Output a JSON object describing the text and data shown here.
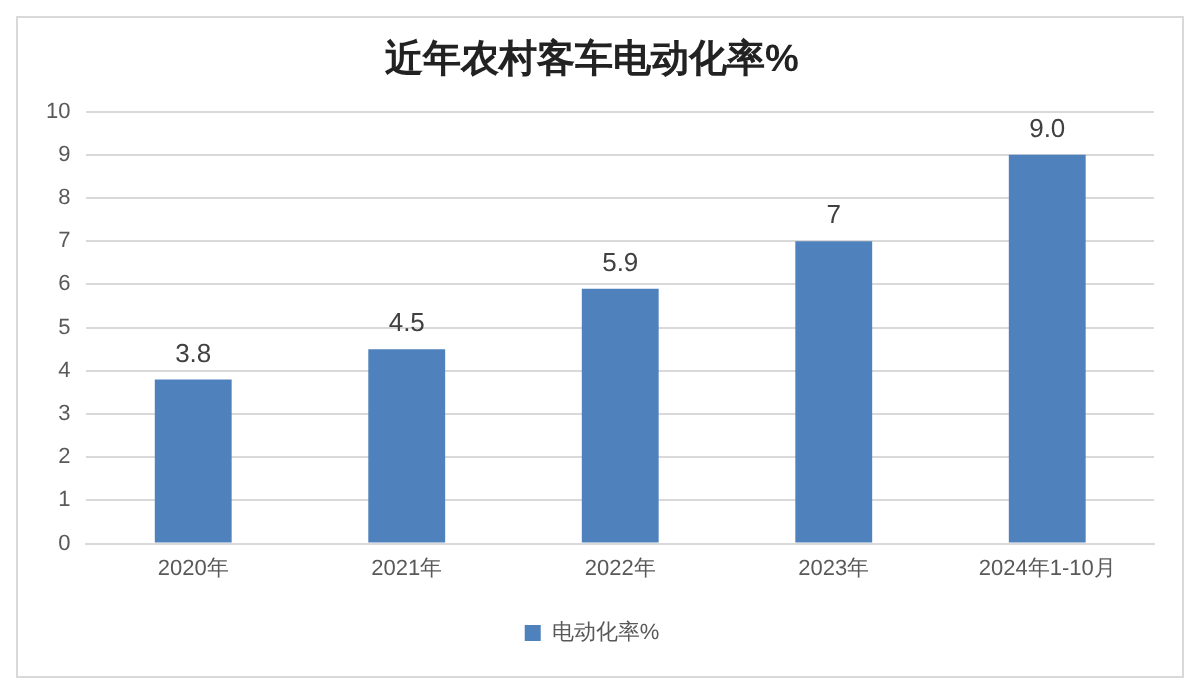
{
  "chart_data": {
    "type": "bar",
    "title": "近年农村客车电动化率%",
    "categories": [
      "2020年",
      "2021年",
      "2022年",
      "2023年",
      "2024年1-10月"
    ],
    "series": [
      {
        "name": "电动化率%",
        "color": "#4f81bd",
        "values": [
          3.8,
          4.5,
          5.9,
          7,
          9.0
        ],
        "value_labels": [
          "3.8",
          "4.5",
          "5.9",
          "7",
          "9.0"
        ]
      }
    ],
    "ylim": [
      0,
      10
    ],
    "yticks": [
      0,
      1,
      2,
      3,
      4,
      5,
      6,
      7,
      8,
      9,
      10
    ],
    "grid": "y",
    "legend": "bottom"
  }
}
